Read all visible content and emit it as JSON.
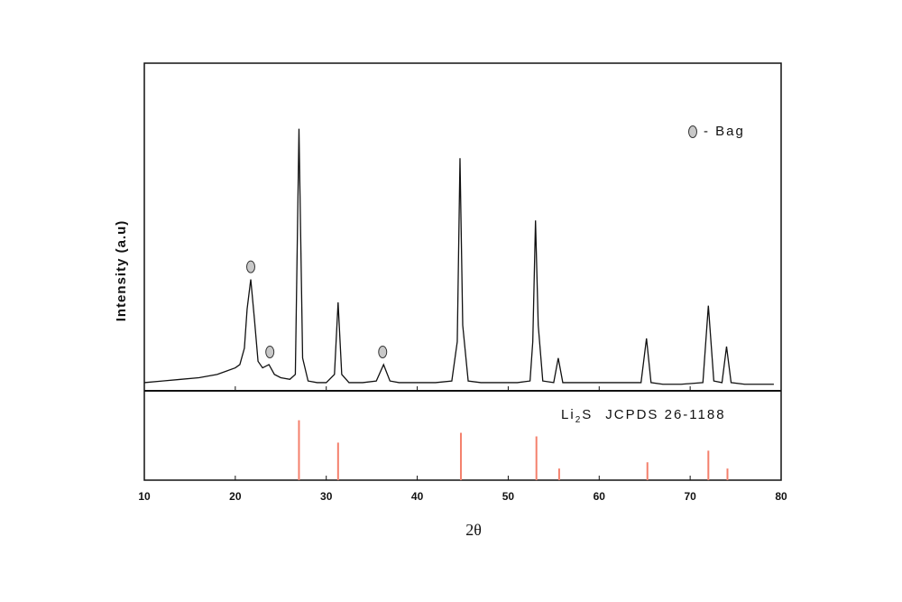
{
  "chart_data": [
    {
      "type": "line",
      "ylabel": "Intensity (a.u)",
      "x": [
        10,
        12,
        14,
        16,
        18,
        19,
        20,
        20.5,
        21,
        21.3,
        21.7,
        22.1,
        22.5,
        23,
        23.7,
        24.3,
        25,
        26,
        26.6,
        27,
        27.4,
        28,
        29,
        30,
        30.9,
        31.3,
        31.7,
        32.5,
        34,
        35.5,
        36.3,
        37,
        38,
        40,
        42,
        43.8,
        44.4,
        44.7,
        45,
        45.6,
        47,
        49,
        51,
        52.4,
        52.7,
        53,
        53.3,
        53.8,
        55,
        55.5,
        56,
        58,
        60,
        62,
        64.6,
        65.2,
        65.7,
        67,
        69,
        71.4,
        72,
        72.6,
        73.5,
        74,
        74.5,
        76,
        78,
        79.2
      ],
      "series": [
        {
          "color": "#111111",
          "values": [
            2.5,
            3,
            3.5,
            4,
            5,
            6,
            7,
            8,
            13,
            25,
            34,
            22,
            9,
            7,
            8,
            5,
            4,
            3.5,
            5,
            80,
            10,
            3,
            2.5,
            2.5,
            5,
            27,
            5,
            2.5,
            2.5,
            3,
            8,
            3,
            2.5,
            2.5,
            2.5,
            3,
            15,
            71,
            20,
            3,
            2.5,
            2.5,
            2.5,
            3,
            15,
            52,
            20,
            3,
            2.5,
            10,
            2.5,
            2.5,
            2.5,
            2.5,
            2.5,
            16,
            2.5,
            2,
            2,
            2.5,
            26,
            3,
            2.5,
            13.5,
            2.5,
            2,
            2,
            2
          ]
        }
      ],
      "xlim": [
        10,
        80
      ],
      "ylim": [
        0,
        100
      ],
      "marker_x": [
        21.7,
        23.8,
        36.2
      ],
      "legend_text": "- Bag",
      "marker_color": "#c8c8c8"
    },
    {
      "type": "stick",
      "xlabel": "2θ",
      "x": [
        27,
        31.3,
        44.8,
        53.1,
        55.6,
        65.3,
        72,
        74.1
      ],
      "values": [
        67,
        42,
        53,
        49,
        13,
        20,
        33,
        13
      ],
      "color": "#f4806c",
      "xlim": [
        10,
        80
      ],
      "ylim": [
        0,
        100
      ],
      "xticks": [
        10,
        20,
        30,
        40,
        50,
        60,
        70,
        80
      ],
      "reference": {
        "main": "Li",
        "sub": "2",
        "rest": "S",
        "source": "JCPDS 26-1188"
      }
    }
  ]
}
